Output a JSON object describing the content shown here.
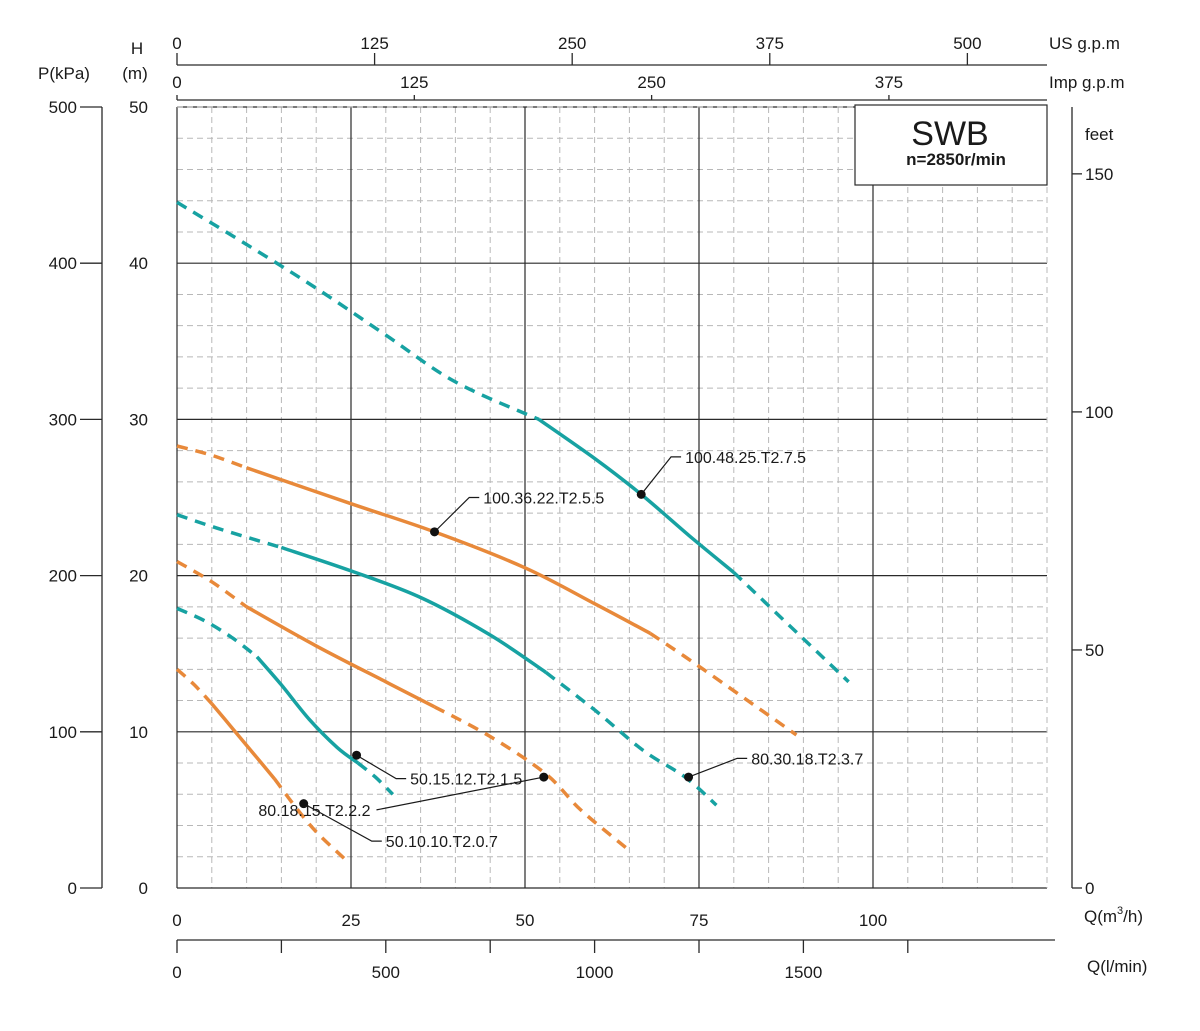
{
  "chart_data": {
    "type": "line",
    "title": "SWB",
    "subtitle": "n=2850r/min",
    "colors": {
      "teal": "#17a2a2",
      "orange": "#e8893a",
      "grid": "#b8b8b8",
      "major": "#2a2a2a"
    },
    "axes": {
      "q_m3h": {
        "label": "Q(m³/h)",
        "label_main": "Q(m",
        "label_sup": "3",
        "label_tail": "/h)",
        "range": [
          0,
          125
        ],
        "ticks": [
          0,
          25,
          50,
          75,
          100
        ],
        "tick_labels": [
          "0",
          "25",
          "50",
          "75",
          "100"
        ]
      },
      "q_lmin": {
        "label": "Q(l/min)",
        "range": [
          0,
          2083.33
        ],
        "ticks": [
          0,
          500,
          1000,
          1500
        ],
        "tick_labels": [
          "0",
          "500",
          "1000",
          "1500"
        ],
        "minor_ticks": [
          250,
          750,
          1250,
          1750
        ]
      },
      "us_gpm": {
        "label": "US g.p.m",
        "range": [
          0,
          550.4
        ],
        "ticks": [
          0,
          125,
          250,
          375,
          500
        ],
        "tick_labels": [
          "0",
          "125",
          "250",
          "375",
          "500"
        ]
      },
      "imp_gpm": {
        "label": "Imp g.p.m",
        "range": [
          0,
          458.3
        ],
        "ticks": [
          0,
          125,
          250,
          375
        ],
        "tick_labels": [
          "0",
          "125",
          "250",
          "375"
        ]
      },
      "head_m": {
        "label_top": "H",
        "label_bottom": "(m)",
        "range": [
          0,
          50
        ],
        "ticks": [
          0,
          10,
          20,
          30,
          40,
          50
        ],
        "tick_labels": [
          "0",
          "10",
          "20",
          "30",
          "40",
          "50"
        ]
      },
      "pressure_kpa": {
        "label": "P(kPa)",
        "range": [
          0,
          500
        ],
        "ticks": [
          0,
          100,
          200,
          300,
          400,
          500
        ],
        "tick_labels": [
          "0",
          "100",
          "200",
          "300",
          "400",
          "500"
        ]
      },
      "feet": {
        "label": "feet",
        "range": [
          0,
          164.04
        ],
        "ticks": [
          0,
          50,
          100,
          150
        ],
        "tick_labels": [
          "0",
          "50",
          "100",
          "150"
        ]
      }
    },
    "series": [
      {
        "name": "50.10.10.T2.0.7",
        "color": "orange",
        "dashed_before": [
          [
            0,
            14.0
          ],
          [
            2.5,
            13.0
          ],
          [
            5,
            11.8
          ]
        ],
        "solid": [
          [
            5,
            11.8
          ],
          [
            8,
            10.2
          ],
          [
            11,
            8.6
          ],
          [
            14,
            7.0
          ]
        ],
        "dashed_after": [
          [
            14,
            7.0
          ],
          [
            17,
            5.2
          ],
          [
            20,
            3.6
          ],
          [
            24,
            1.9
          ]
        ],
        "point": [
          18.2,
          5.4
        ],
        "label_at": [
          30,
          3.0
        ]
      },
      {
        "name": "50.15.12.T2.1.5",
        "color": "teal",
        "dashed_before": [
          [
            0,
            17.9
          ],
          [
            4,
            17.1
          ],
          [
            8,
            16.0
          ],
          [
            11.5,
            14.8
          ]
        ],
        "solid": [
          [
            11.5,
            14.8
          ],
          [
            15,
            13.0
          ],
          [
            19,
            10.8
          ],
          [
            23,
            9.0
          ],
          [
            26,
            8.0
          ]
        ],
        "dashed_after": [
          [
            26,
            8.0
          ],
          [
            28.5,
            7.1
          ],
          [
            31,
            6.0
          ]
        ],
        "point": [
          25.8,
          8.5
        ],
        "label_at": [
          33.5,
          7.0
        ]
      },
      {
        "name": "80.18.15.T2.2.2",
        "color": "orange",
        "dashed_before": [
          [
            0,
            20.9
          ],
          [
            5,
            19.6
          ],
          [
            10,
            18.0
          ]
        ],
        "solid": [
          [
            10,
            18.0
          ],
          [
            20,
            15.5
          ],
          [
            30,
            13.2
          ],
          [
            37,
            11.6
          ]
        ],
        "dashed_after": [
          [
            37,
            11.6
          ],
          [
            45,
            9.7
          ],
          [
            53,
            7.3
          ],
          [
            58,
            5.0
          ],
          [
            65,
            2.4
          ]
        ],
        "point": [
          52.7,
          7.1
        ],
        "label_at": [
          27.8,
          5.0
        ]
      },
      {
        "name": "80.30.18.T2.3.7",
        "color": "teal",
        "dashed_before": [
          [
            0,
            23.9
          ],
          [
            6,
            23.0
          ],
          [
            15,
            21.8
          ]
        ],
        "solid": [
          [
            15,
            21.8
          ],
          [
            25,
            20.3
          ],
          [
            35,
            18.6
          ],
          [
            45,
            16.2
          ],
          [
            53,
            13.8
          ]
        ],
        "dashed_after": [
          [
            53,
            13.8
          ],
          [
            60,
            11.4
          ],
          [
            67,
            8.8
          ],
          [
            73,
            7.1
          ],
          [
            77.5,
            5.3
          ]
        ],
        "point": [
          73.5,
          7.1
        ],
        "label_at": [
          82.5,
          8.3
        ]
      },
      {
        "name": "100.36.22.T2.5.5",
        "color": "orange",
        "dashed_before": [
          [
            0,
            28.3
          ],
          [
            5,
            27.7
          ],
          [
            10,
            26.9
          ]
        ],
        "solid": [
          [
            10,
            26.9
          ],
          [
            25,
            24.6
          ],
          [
            37,
            22.8
          ],
          [
            50,
            20.5
          ],
          [
            60,
            18.2
          ],
          [
            68,
            16.3
          ]
        ],
        "dashed_after": [
          [
            68,
            16.3
          ],
          [
            74,
            14.5
          ],
          [
            82,
            12.0
          ],
          [
            89,
            9.8
          ]
        ],
        "point": [
          37,
          22.8
        ],
        "label_at": [
          44,
          25.0
        ]
      },
      {
        "name": "100.48.25.T2.7.5",
        "color": "teal",
        "dashed_before": [
          [
            0,
            43.9
          ],
          [
            10,
            41.2
          ],
          [
            20,
            38.4
          ],
          [
            30,
            35.4
          ],
          [
            40,
            32.4
          ],
          [
            52,
            30.0
          ]
        ],
        "solid": [
          [
            52,
            30.0
          ],
          [
            60,
            27.5
          ],
          [
            66.7,
            25.2
          ],
          [
            74,
            22.4
          ],
          [
            80,
            20.2
          ]
        ],
        "dashed_after": [
          [
            80,
            20.2
          ],
          [
            88,
            16.8
          ],
          [
            96.5,
            13.2
          ]
        ],
        "point": [
          66.7,
          25.2
        ],
        "label_at": [
          73,
          27.6
        ]
      }
    ]
  }
}
